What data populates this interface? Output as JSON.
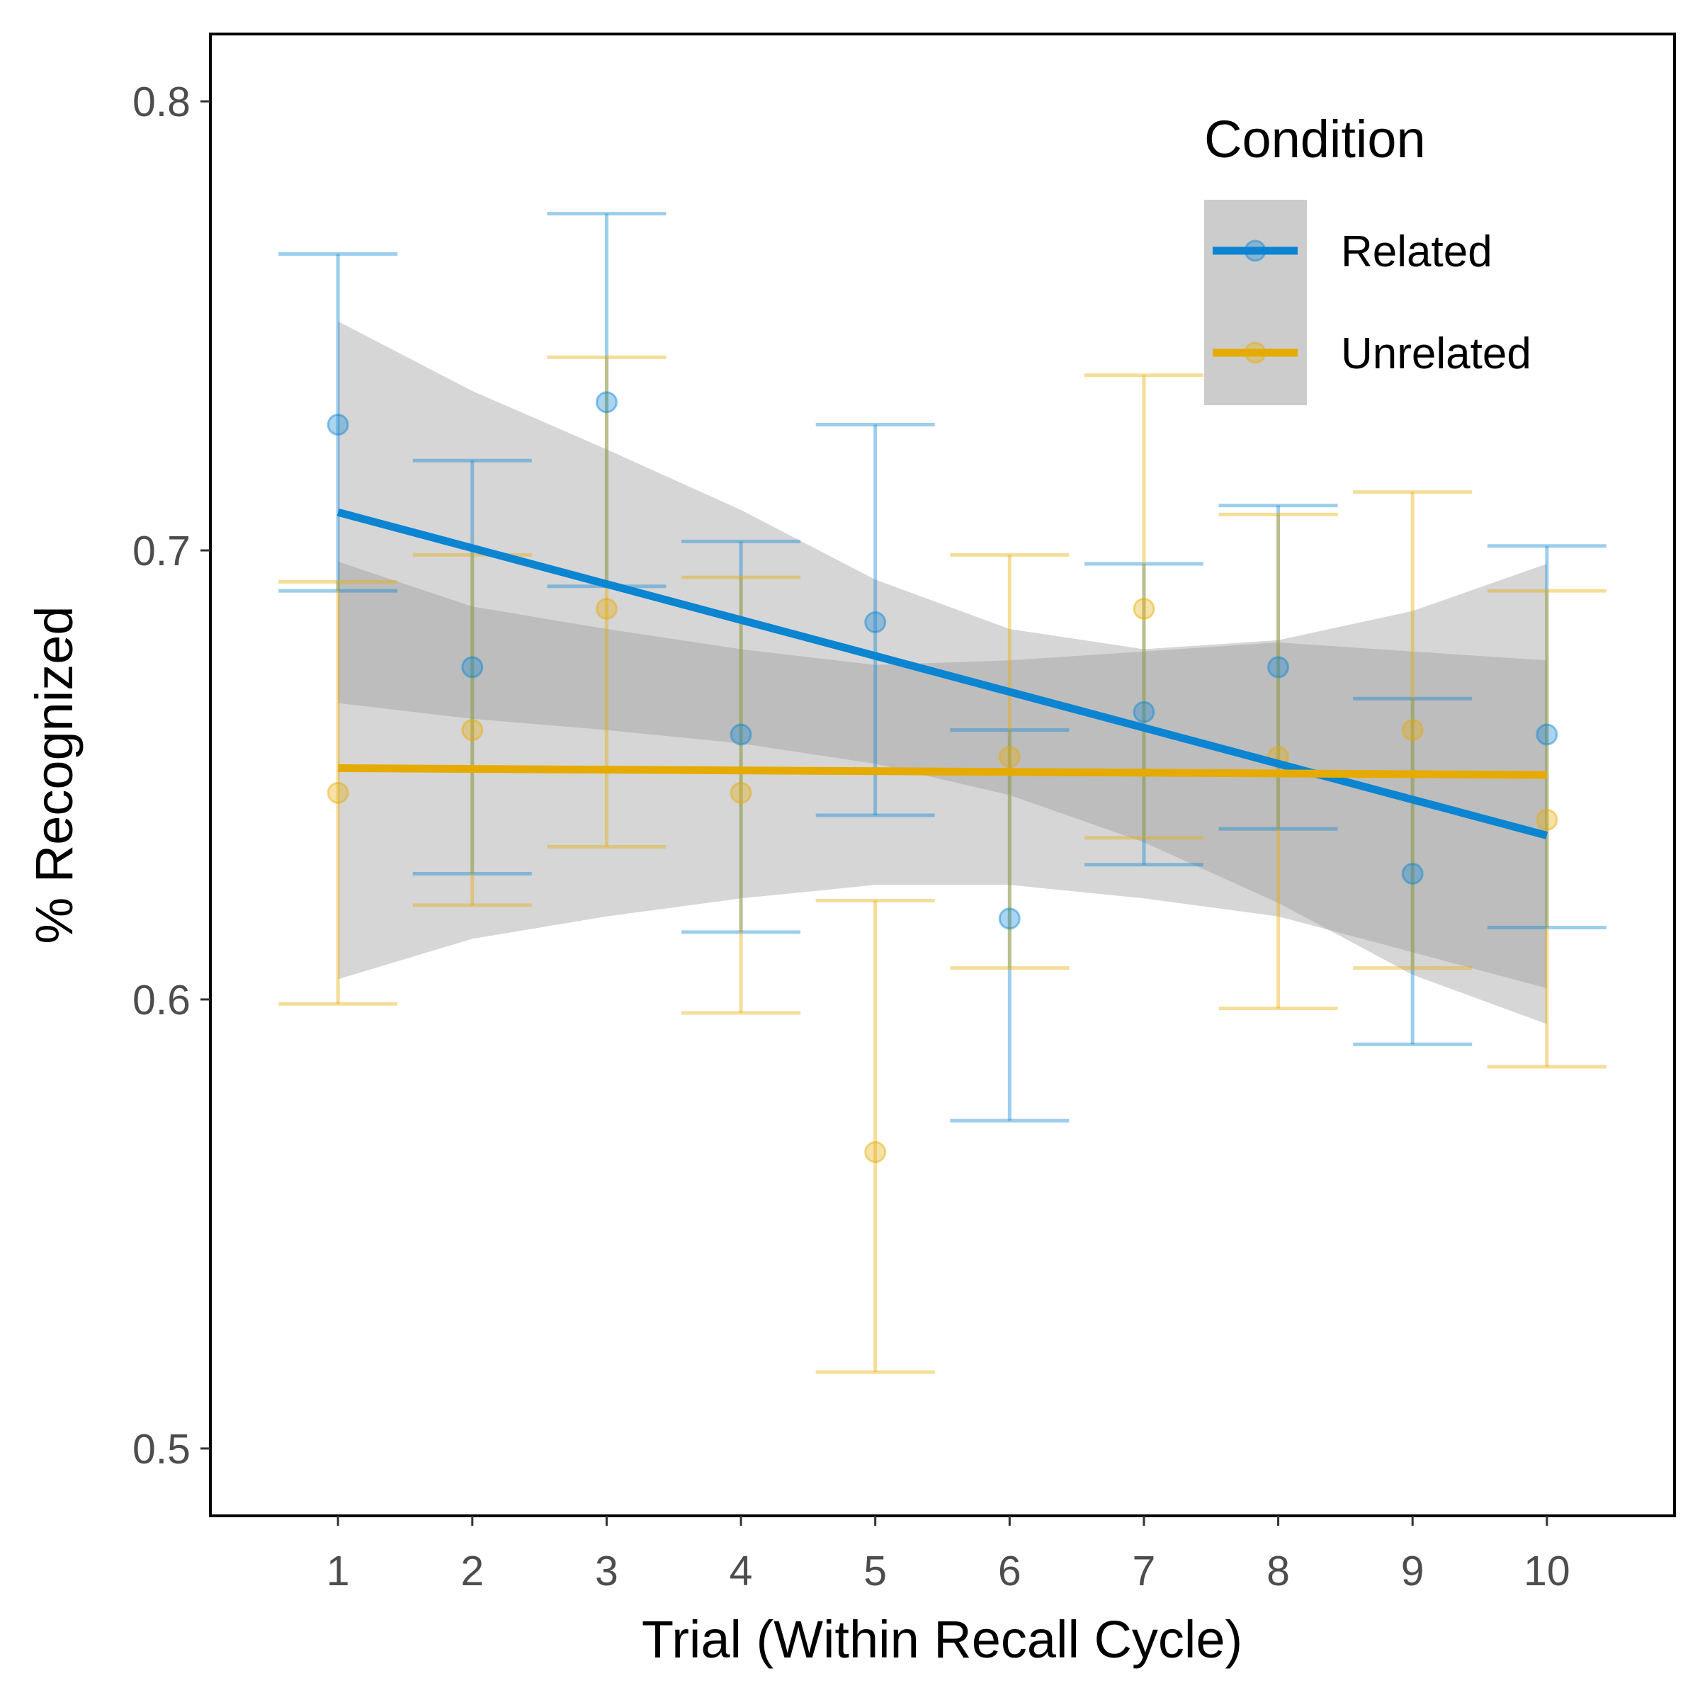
{
  "chart_data": {
    "type": "scatter",
    "xlabel": "Trial (Within Recall Cycle)",
    "ylabel": "% Recognized",
    "x": [
      1,
      2,
      3,
      4,
      5,
      6,
      7,
      8,
      9,
      10
    ],
    "x_tick_labels": [
      "1",
      "2",
      "3",
      "4",
      "5",
      "6",
      "7",
      "8",
      "9",
      "10"
    ],
    "y_ticks": [
      0.5,
      0.6,
      0.7,
      0.8
    ],
    "y_tick_labels": [
      "0.5",
      "0.6",
      "0.7",
      "0.8"
    ],
    "xlim": [
      0.05,
      10.95
    ],
    "ylim": [
      0.485,
      0.815
    ],
    "grid": false,
    "legend": {
      "title": "Condition",
      "position": "top-right"
    },
    "series": [
      {
        "name": "Related",
        "color": "#0b84d2",
        "values": [
          0.728,
          0.674,
          0.733,
          0.659,
          0.684,
          0.618,
          0.664,
          0.674,
          0.628,
          0.659
        ],
        "error_low": [
          0.691,
          0.628,
          0.692,
          0.615,
          0.641,
          0.573,
          0.63,
          0.638,
          0.59,
          0.616
        ],
        "error_high": [
          0.766,
          0.72,
          0.775,
          0.702,
          0.728,
          0.66,
          0.697,
          0.71,
          0.667,
          0.701
        ],
        "trend": {
          "start": 0.7085,
          "end": 0.6365
        },
        "ci_upper": [
          0.751,
          0.7355,
          0.7225,
          0.709,
          0.6935,
          0.6825,
          0.678,
          0.68,
          0.6865,
          0.697
        ],
        "ci_lower": [
          0.666,
          0.6625,
          0.66,
          0.657,
          0.6525,
          0.6455,
          0.635,
          0.6215,
          0.6055,
          0.5945
        ]
      },
      {
        "name": "Unrelated",
        "color": "#e6ab02",
        "values": [
          0.646,
          0.66,
          0.687,
          0.646,
          0.566,
          0.654,
          0.687,
          0.654,
          0.66,
          0.64
        ],
        "error_low": [
          0.599,
          0.621,
          0.634,
          0.597,
          0.517,
          0.607,
          0.636,
          0.598,
          0.607,
          0.585
        ],
        "error_high": [
          0.693,
          0.699,
          0.743,
          0.694,
          0.622,
          0.699,
          0.739,
          0.708,
          0.713,
          0.691
        ],
        "trend": {
          "start": 0.6515,
          "end": 0.65
        },
        "ci_upper": [
          0.6975,
          0.6875,
          0.6825,
          0.678,
          0.6745,
          0.6755,
          0.6775,
          0.6795,
          0.6775,
          0.6755
        ],
        "ci_lower": [
          0.6045,
          0.6135,
          0.6185,
          0.6225,
          0.6255,
          0.6255,
          0.6225,
          0.6185,
          0.6105,
          0.6025
        ]
      }
    ]
  }
}
